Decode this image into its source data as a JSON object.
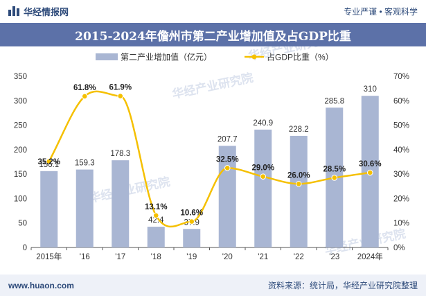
{
  "header": {
    "brand_name": "华经情报网",
    "slogan": "专业严谨 • 客观科学",
    "logo_icon": "bar-chart-logo-icon"
  },
  "title": "2015-2024年儋州市第二产业增加值及占GDP比重",
  "footer": {
    "website": "www.huaon.com",
    "source": "资料来源：统计局，华经产业研究院整理"
  },
  "watermark": "华经产业研究院",
  "colors": {
    "bar": "#a9b6d3",
    "line": "#f5c000",
    "title_bg": "#5c71a8",
    "brand": "#2d4a7a"
  },
  "chart_data": {
    "type": "bar",
    "categories": [
      "2015年",
      "'16",
      "'17",
      "'18",
      "'19",
      "'20",
      "'21",
      "'22",
      "'23",
      "2024年"
    ],
    "series": [
      {
        "name": "第二产业增加值（亿元）",
        "type": "bar",
        "axis": "left",
        "values": [
          156.1,
          159.3,
          178.3,
          42.4,
          37.9,
          207.7,
          240.9,
          228.2,
          285.8,
          310
        ],
        "labels": [
          "156.1",
          "159.3",
          "178.3",
          "42.4",
          "37.9",
          "207.7",
          "240.9",
          "228.2",
          "285.8",
          "310"
        ]
      },
      {
        "name": "占GDP比重（%）",
        "type": "line",
        "axis": "right",
        "values": [
          35.2,
          61.8,
          61.9,
          13.1,
          10.6,
          32.5,
          29.0,
          26.0,
          28.5,
          30.6
        ],
        "labels": [
          "35.2%",
          "61.8%",
          "61.9%",
          "13.1%",
          "10.6%",
          "32.5%",
          "29.0%",
          "26.0%",
          "28.5%",
          "30.6%"
        ]
      }
    ],
    "y_left": {
      "min": 0,
      "max": 350,
      "ticks": [
        "0",
        "50",
        "100",
        "150",
        "200",
        "250",
        "300",
        "350"
      ]
    },
    "y_right": {
      "min": 0,
      "max": 70,
      "ticks": [
        "0%",
        "10%",
        "20%",
        "30%",
        "40%",
        "50%",
        "60%",
        "70%"
      ]
    },
    "grid": false,
    "legend_position": "top"
  }
}
